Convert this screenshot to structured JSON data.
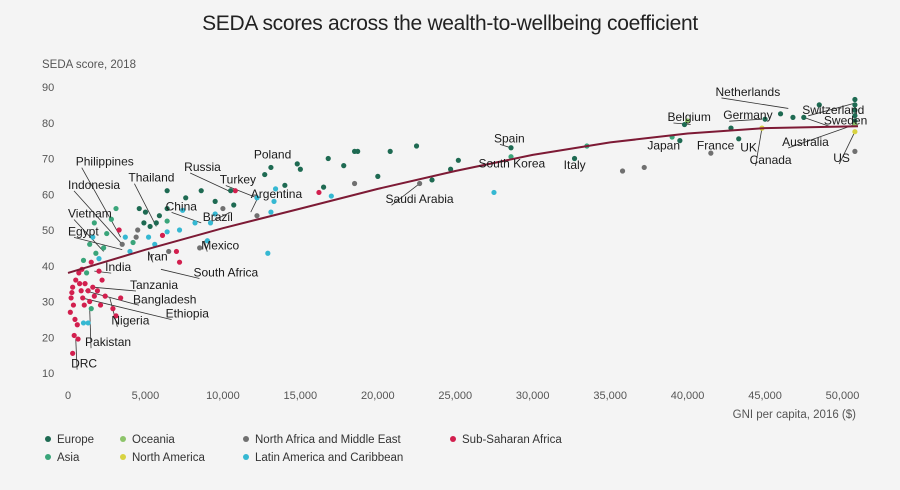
{
  "chart_data": {
    "type": "scatter",
    "title": "SEDA scores across the wealth-to-wellbeing coefficient",
    "ylabel": "SEDA score, 2018",
    "xlabel": "GNI per capita, 2016 ($)",
    "xlim": [
      0,
      51000
    ],
    "ylim": [
      10,
      90
    ],
    "x_ticks": [
      0,
      5000,
      10000,
      15000,
      20000,
      25000,
      30000,
      35000,
      40000,
      45000,
      50000
    ],
    "x_tick_labels": [
      "0",
      "5,000",
      "10,000",
      "15,000",
      "20,000",
      "25,000",
      "30,000",
      "35,000",
      "40,000",
      "45,000",
      "50,000"
    ],
    "y_ticks": [
      10,
      20,
      30,
      40,
      50,
      60,
      70,
      80,
      90
    ],
    "y_tick_labels": [
      "10",
      "20",
      "30",
      "40",
      "50",
      "60",
      "70",
      "80",
      "90"
    ],
    "grid": false,
    "legend_position": "bottom-left",
    "regions": [
      {
        "key": "europe",
        "name": "Europe",
        "color": "#1e6a52"
      },
      {
        "key": "asia",
        "name": "Asia",
        "color": "#3aa57a"
      },
      {
        "key": "oceania",
        "name": "Oceania",
        "color": "#8dc46a"
      },
      {
        "key": "namerica",
        "name": "North America",
        "color": "#d8d341"
      },
      {
        "key": "nafrica",
        "name": "North Africa and Middle East",
        "color": "#707070"
      },
      {
        "key": "latam",
        "name": "Latin America and Caribbean",
        "color": "#35b8d2"
      },
      {
        "key": "ssa",
        "name": "Sub-Saharan Africa",
        "color": "#d21f4e"
      }
    ],
    "trend": {
      "name": "",
      "color": "#7d1a35",
      "x": [
        0,
        5000,
        10000,
        15000,
        20000,
        25000,
        30000,
        35000,
        40000,
        45000,
        51000
      ],
      "y": [
        38,
        44.5,
        50.5,
        56,
        61.5,
        66.5,
        71,
        74.5,
        77,
        78.5,
        79
      ]
    },
    "points": [
      {
        "x": 48500,
        "y": 85,
        "r": "europe"
      },
      {
        "x": 50800,
        "y": 86.5,
        "r": "europe"
      },
      {
        "x": 50800,
        "y": 85,
        "r": "europe"
      },
      {
        "x": 50800,
        "y": 83.5,
        "r": "europe"
      },
      {
        "x": 50800,
        "y": 82,
        "r": "europe"
      },
      {
        "x": 50800,
        "y": 80.5,
        "r": "europe"
      },
      {
        "x": 47500,
        "y": 81.5,
        "r": "europe"
      },
      {
        "x": 46800,
        "y": 81.5,
        "r": "europe"
      },
      {
        "x": 46000,
        "y": 82.5,
        "r": "europe"
      },
      {
        "x": 45000,
        "y": 81,
        "r": "europe"
      },
      {
        "x": 42800,
        "y": 78.5,
        "r": "europe"
      },
      {
        "x": 43300,
        "y": 75.5,
        "r": "europe"
      },
      {
        "x": 39800,
        "y": 79.5,
        "r": "europe"
      },
      {
        "x": 39500,
        "y": 75,
        "r": "europe"
      },
      {
        "x": 41500,
        "y": 71.5,
        "r": "nafrica"
      },
      {
        "x": 37200,
        "y": 67.5,
        "r": "nafrica"
      },
      {
        "x": 35800,
        "y": 66.5,
        "r": "nafrica"
      },
      {
        "x": 50800,
        "y": 72,
        "r": "nafrica"
      },
      {
        "x": 44800,
        "y": 78.5,
        "r": "namerica"
      },
      {
        "x": 50800,
        "y": 77.5,
        "r": "namerica"
      },
      {
        "x": 50800,
        "y": 79.5,
        "r": "oceania"
      },
      {
        "x": 40000,
        "y": 80.5,
        "r": "oceania"
      },
      {
        "x": 39000,
        "y": 76,
        "r": "asia"
      },
      {
        "x": 33500,
        "y": 73.5,
        "r": "asia"
      },
      {
        "x": 32700,
        "y": 70,
        "r": "europe"
      },
      {
        "x": 28600,
        "y": 73,
        "r": "europe"
      },
      {
        "x": 28600,
        "y": 70.5,
        "r": "asia"
      },
      {
        "x": 27500,
        "y": 60.5,
        "r": "latam"
      },
      {
        "x": 25200,
        "y": 69.5,
        "r": "europe"
      },
      {
        "x": 24700,
        "y": 67,
        "r": "europe"
      },
      {
        "x": 23500,
        "y": 64,
        "r": "europe"
      },
      {
        "x": 22500,
        "y": 73.5,
        "r": "europe"
      },
      {
        "x": 22700,
        "y": 63,
        "r": "nafrica"
      },
      {
        "x": 20800,
        "y": 72,
        "r": "europe"
      },
      {
        "x": 20000,
        "y": 65,
        "r": "europe"
      },
      {
        "x": 18700,
        "y": 72,
        "r": "europe"
      },
      {
        "x": 18500,
        "y": 72,
        "r": "europe"
      },
      {
        "x": 18500,
        "y": 63,
        "r": "nafrica"
      },
      {
        "x": 17800,
        "y": 68,
        "r": "europe"
      },
      {
        "x": 16800,
        "y": 70,
        "r": "europe"
      },
      {
        "x": 16500,
        "y": 62,
        "r": "europe"
      },
      {
        "x": 17000,
        "y": 59.5,
        "r": "latam"
      },
      {
        "x": 15000,
        "y": 67,
        "r": "europe"
      },
      {
        "x": 14800,
        "y": 68.5,
        "r": "europe"
      },
      {
        "x": 14000,
        "y": 62.5,
        "r": "europe"
      },
      {
        "x": 16200,
        "y": 60.5,
        "r": "ssa"
      },
      {
        "x": 13100,
        "y": 67.5,
        "r": "europe"
      },
      {
        "x": 12700,
        "y": 65.5,
        "r": "europe"
      },
      {
        "x": 13400,
        "y": 61.5,
        "r": "latam"
      },
      {
        "x": 13300,
        "y": 58,
        "r": "latam"
      },
      {
        "x": 13100,
        "y": 55,
        "r": "latam"
      },
      {
        "x": 12200,
        "y": 59,
        "r": "latam"
      },
      {
        "x": 12200,
        "y": 54,
        "r": "nafrica"
      },
      {
        "x": 12900,
        "y": 43.5,
        "r": "latam"
      },
      {
        "x": 10800,
        "y": 61,
        "r": "ssa"
      },
      {
        "x": 10500,
        "y": 61,
        "r": "europe"
      },
      {
        "x": 10700,
        "y": 57,
        "r": "europe"
      },
      {
        "x": 10000,
        "y": 56,
        "r": "nafrica"
      },
      {
        "x": 9500,
        "y": 58,
        "r": "europe"
      },
      {
        "x": 9500,
        "y": 54.5,
        "r": "latam"
      },
      {
        "x": 9200,
        "y": 52,
        "r": "latam"
      },
      {
        "x": 9000,
        "y": 47,
        "r": "latam"
      },
      {
        "x": 8600,
        "y": 61,
        "r": "europe"
      },
      {
        "x": 8200,
        "y": 52,
        "r": "latam"
      },
      {
        "x": 8500,
        "y": 45,
        "r": "nafrica"
      },
      {
        "x": 7600,
        "y": 59,
        "r": "europe"
      },
      {
        "x": 7400,
        "y": 55.5,
        "r": "latam"
      },
      {
        "x": 7200,
        "y": 50,
        "r": "latam"
      },
      {
        "x": 7000,
        "y": 44,
        "r": "ssa"
      },
      {
        "x": 7200,
        "y": 41,
        "r": "ssa"
      },
      {
        "x": 6400,
        "y": 61,
        "r": "europe"
      },
      {
        "x": 6400,
        "y": 56,
        "r": "europe"
      },
      {
        "x": 6400,
        "y": 52.5,
        "r": "asia"
      },
      {
        "x": 6400,
        "y": 49.5,
        "r": "latam"
      },
      {
        "x": 6100,
        "y": 48.5,
        "r": "ssa"
      },
      {
        "x": 6500,
        "y": 44,
        "r": "nafrica"
      },
      {
        "x": 5900,
        "y": 54,
        "r": "europe"
      },
      {
        "x": 5700,
        "y": 52,
        "r": "europe"
      },
      {
        "x": 5300,
        "y": 51,
        "r": "europe"
      },
      {
        "x": 5200,
        "y": 48,
        "r": "latam"
      },
      {
        "x": 5600,
        "y": 46,
        "r": "latam"
      },
      {
        "x": 5000,
        "y": 55,
        "r": "europe"
      },
      {
        "x": 4900,
        "y": 52,
        "r": "europe"
      },
      {
        "x": 4600,
        "y": 56,
        "r": "europe"
      },
      {
        "x": 4500,
        "y": 50,
        "r": "nafrica"
      },
      {
        "x": 4400,
        "y": 48,
        "r": "nafrica"
      },
      {
        "x": 4200,
        "y": 46.5,
        "r": "asia"
      },
      {
        "x": 4000,
        "y": 44,
        "r": "latam"
      },
      {
        "x": 3700,
        "y": 48,
        "r": "latam"
      },
      {
        "x": 3500,
        "y": 46,
        "r": "nafrica"
      },
      {
        "x": 3300,
        "y": 50,
        "r": "ssa"
      },
      {
        "x": 3100,
        "y": 56,
        "r": "asia"
      },
      {
        "x": 2800,
        "y": 53,
        "r": "asia"
      },
      {
        "x": 2500,
        "y": 49,
        "r": "asia"
      },
      {
        "x": 2300,
        "y": 45,
        "r": "asia"
      },
      {
        "x": 2000,
        "y": 42,
        "r": "latam"
      },
      {
        "x": 2000,
        "y": 38.5,
        "r": "ssa"
      },
      {
        "x": 2200,
        "y": 36,
        "r": "ssa"
      },
      {
        "x": 1700,
        "y": 52,
        "r": "asia"
      },
      {
        "x": 1600,
        "y": 48,
        "r": "latam"
      },
      {
        "x": 1400,
        "y": 46,
        "r": "asia"
      },
      {
        "x": 1800,
        "y": 43.5,
        "r": "asia"
      },
      {
        "x": 1500,
        "y": 41,
        "r": "ssa"
      },
      {
        "x": 1200,
        "y": 38,
        "r": "asia"
      },
      {
        "x": 1000,
        "y": 41.5,
        "r": "asia"
      },
      {
        "x": 900,
        "y": 39,
        "r": "ssa"
      },
      {
        "x": 700,
        "y": 38,
        "r": "ssa"
      },
      {
        "x": 500,
        "y": 36,
        "r": "ssa"
      },
      {
        "x": 300,
        "y": 34,
        "r": "ssa"
      },
      {
        "x": 250,
        "y": 32.5,
        "r": "ssa"
      },
      {
        "x": 200,
        "y": 31,
        "r": "ssa"
      },
      {
        "x": 350,
        "y": 29,
        "r": "ssa"
      },
      {
        "x": 150,
        "y": 27,
        "r": "ssa"
      },
      {
        "x": 450,
        "y": 25,
        "r": "ssa"
      },
      {
        "x": 600,
        "y": 23.5,
        "r": "ssa"
      },
      {
        "x": 750,
        "y": 35,
        "r": "ssa"
      },
      {
        "x": 850,
        "y": 33,
        "r": "ssa"
      },
      {
        "x": 950,
        "y": 31,
        "r": "ssa"
      },
      {
        "x": 1050,
        "y": 29,
        "r": "ssa"
      },
      {
        "x": 1100,
        "y": 35,
        "r": "ssa"
      },
      {
        "x": 1300,
        "y": 33,
        "r": "ssa"
      },
      {
        "x": 1400,
        "y": 30,
        "r": "ssa"
      },
      {
        "x": 1600,
        "y": 34,
        "r": "ssa"
      },
      {
        "x": 1700,
        "y": 31.5,
        "r": "ssa"
      },
      {
        "x": 1900,
        "y": 33,
        "r": "ssa"
      },
      {
        "x": 2100,
        "y": 29,
        "r": "ssa"
      },
      {
        "x": 2400,
        "y": 31.5,
        "r": "ssa"
      },
      {
        "x": 2900,
        "y": 28,
        "r": "ssa"
      },
      {
        "x": 3100,
        "y": 26,
        "r": "ssa"
      },
      {
        "x": 3400,
        "y": 31,
        "r": "ssa"
      },
      {
        "x": 1300,
        "y": 24,
        "r": "latam"
      },
      {
        "x": 1500,
        "y": 28,
        "r": "asia"
      },
      {
        "x": 400,
        "y": 20.5,
        "r": "ssa"
      },
      {
        "x": 650,
        "y": 19.5,
        "r": "ssa"
      },
      {
        "x": 300,
        "y": 15.5,
        "r": "ssa"
      },
      {
        "x": 1000,
        "y": 24,
        "r": "latam"
      }
    ],
    "labels": [
      {
        "text": "Netherlands",
        "x": 46500,
        "y": 84,
        "lx": 41800,
        "ly": 87.5,
        "anchor": "start"
      },
      {
        "text": "Switzerland",
        "x": 50800,
        "y": 85.5,
        "lx": 47400,
        "ly": 82.5,
        "anchor": "start"
      },
      {
        "text": "Sweden",
        "x": 47500,
        "y": 81.5,
        "lx": 48800,
        "ly": 79.5,
        "anchor": "start"
      },
      {
        "text": "Belgium",
        "x": 40200,
        "y": 79.5,
        "lx": 38700,
        "ly": 80.5,
        "anchor": "start"
      },
      {
        "text": "Germany",
        "x": 44800,
        "y": 81,
        "lx": 42300,
        "ly": 81,
        "anchor": "start"
      },
      {
        "text": "Australia",
        "x": 50800,
        "y": 79.5,
        "lx": 46100,
        "ly": 73.5,
        "anchor": "start"
      },
      {
        "text": "Japan",
        "x": null,
        "y": null,
        "lx": 37400,
        "ly": 72.5,
        "anchor": "start"
      },
      {
        "text": "France",
        "x": null,
        "y": null,
        "lx": 40600,
        "ly": 72.5,
        "anchor": "start"
      },
      {
        "text": "UK",
        "x": null,
        "y": null,
        "lx": 43400,
        "ly": 72,
        "anchor": "start"
      },
      {
        "text": "Canada",
        "x": 44800,
        "y": 78.5,
        "lx": 44000,
        "ly": 68.5,
        "anchor": "start"
      },
      {
        "text": "US",
        "x": 50800,
        "y": 77.5,
        "lx": 49400,
        "ly": 69,
        "anchor": "start"
      },
      {
        "text": "Spain",
        "x": 28600,
        "y": 73,
        "lx": 27500,
        "ly": 74.5,
        "anchor": "start"
      },
      {
        "text": "South Korea",
        "x": null,
        "y": null,
        "lx": 26500,
        "ly": 67.5,
        "anchor": "start"
      },
      {
        "text": "Italy",
        "x": null,
        "y": null,
        "lx": 32000,
        "ly": 67,
        "anchor": "start"
      },
      {
        "text": "Saudi Arabia",
        "x": 22700,
        "y": 63,
        "lx": 20500,
        "ly": 57.5,
        "anchor": "start"
      },
      {
        "text": "Poland",
        "x": null,
        "y": null,
        "lx": 12000,
        "ly": 70,
        "anchor": "start"
      },
      {
        "text": "Russia",
        "x": 10600,
        "y": 60.5,
        "lx": 7500,
        "ly": 66.5,
        "anchor": "start"
      },
      {
        "text": "Turkey",
        "x": 12200,
        "y": 59,
        "lx": 9800,
        "ly": 63,
        "anchor": "start"
      },
      {
        "text": "Argentina",
        "x": 11800,
        "y": 55,
        "lx": 11800,
        "ly": 59,
        "anchor": "start"
      },
      {
        "text": "Brazil",
        "x": 10500,
        "y": 55,
        "lx": 8700,
        "ly": 52.5,
        "anchor": "start"
      },
      {
        "text": "China",
        "x": 8600,
        "y": 52,
        "lx": 6300,
        "ly": 55.5,
        "anchor": "start"
      },
      {
        "text": "Thailand",
        "x": 5700,
        "y": 51,
        "lx": 3900,
        "ly": 63.5,
        "anchor": "start"
      },
      {
        "text": "Philippines",
        "x": 3400,
        "y": 48,
        "lx": 500,
        "ly": 68,
        "anchor": "start"
      },
      {
        "text": "Indonesia",
        "x": 3500,
        "y": 46,
        "lx": 0,
        "ly": 61.5,
        "anchor": "start"
      },
      {
        "text": "Vietnam",
        "x": 2300,
        "y": 44,
        "lx": 0,
        "ly": 53.5,
        "anchor": "start"
      },
      {
        "text": "Egypt",
        "x": 3500,
        "y": 44.5,
        "lx": 0,
        "ly": 48.5,
        "anchor": "start"
      },
      {
        "text": "Mexico",
        "x": 8800,
        "y": 47,
        "lx": 8600,
        "ly": 44.5,
        "anchor": "start"
      },
      {
        "text": "Iran",
        "x": 5200,
        "y": 44,
        "lx": 5100,
        "ly": 41.5,
        "anchor": "start"
      },
      {
        "text": "India",
        "x": 1700,
        "y": 38.5,
        "lx": 2400,
        "ly": 38.5,
        "anchor": "start"
      },
      {
        "text": "South Africa",
        "x": 6000,
        "y": 39,
        "lx": 8100,
        "ly": 37,
        "anchor": "start"
      },
      {
        "text": "Tanzania",
        "x": 1600,
        "y": 34,
        "lx": 4000,
        "ly": 33.5,
        "anchor": "start"
      },
      {
        "text": "Bangladesh",
        "x": 1100,
        "y": 33,
        "lx": 4200,
        "ly": 29.5,
        "anchor": "start"
      },
      {
        "text": "Ethiopia",
        "x": 900,
        "y": 31,
        "lx": 6300,
        "ly": 25.5,
        "anchor": "start"
      },
      {
        "text": "Nigeria",
        "x": 2700,
        "y": 31,
        "lx": 2800,
        "ly": 23.5,
        "anchor": "start"
      },
      {
        "text": "Pakistan",
        "x": 1400,
        "y": 28,
        "lx": 1100,
        "ly": 17.5,
        "anchor": "start"
      },
      {
        "text": "DRC",
        "x": 500,
        "y": 19.5,
        "lx": 200,
        "ly": 11.5,
        "anchor": "start"
      }
    ]
  }
}
